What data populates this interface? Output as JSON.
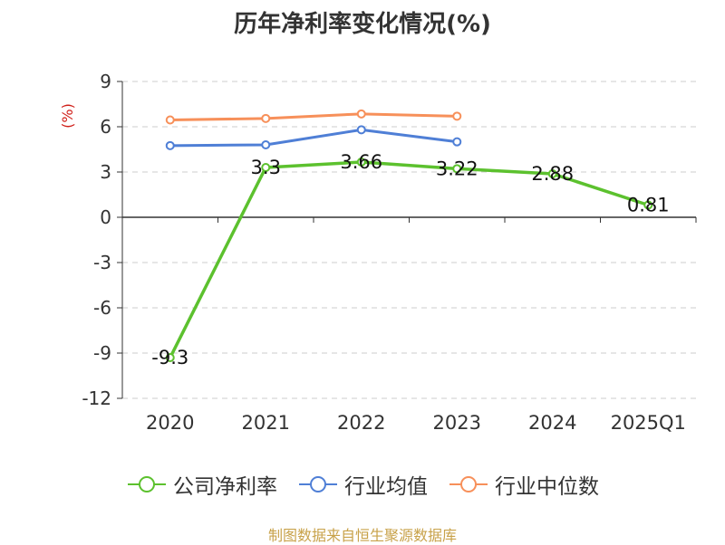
{
  "chart_data": {
    "type": "line",
    "title": "历年净利率变化情况(%)",
    "ylabel": "(%)",
    "xlabel": "",
    "categories": [
      "2020",
      "2021",
      "2022",
      "2023",
      "2024",
      "2025Q1"
    ],
    "ylim": [
      -12,
      9
    ],
    "yticks": [
      9,
      6,
      3,
      0,
      -3,
      -6,
      -9,
      -12
    ],
    "grid": true,
    "legend_position": "bottom",
    "series": [
      {
        "name": "公司净利率",
        "color": "#5cc12e",
        "values": [
          -9.3,
          3.3,
          3.66,
          3.22,
          2.88,
          0.81
        ],
        "data_labels": [
          "-9.3",
          "3.3",
          "3.66",
          "3.22",
          "2.88",
          "0.81"
        ]
      },
      {
        "name": "行业均值",
        "color": "#4f7fd6",
        "values": [
          4.75,
          4.8,
          5.8,
          5.0,
          null,
          null
        ]
      },
      {
        "name": "行业中位数",
        "color": "#f7905a",
        "values": [
          6.45,
          6.55,
          6.85,
          6.7,
          null,
          null
        ]
      }
    ]
  },
  "source_note": "制图数据来自恒生聚源数据库"
}
